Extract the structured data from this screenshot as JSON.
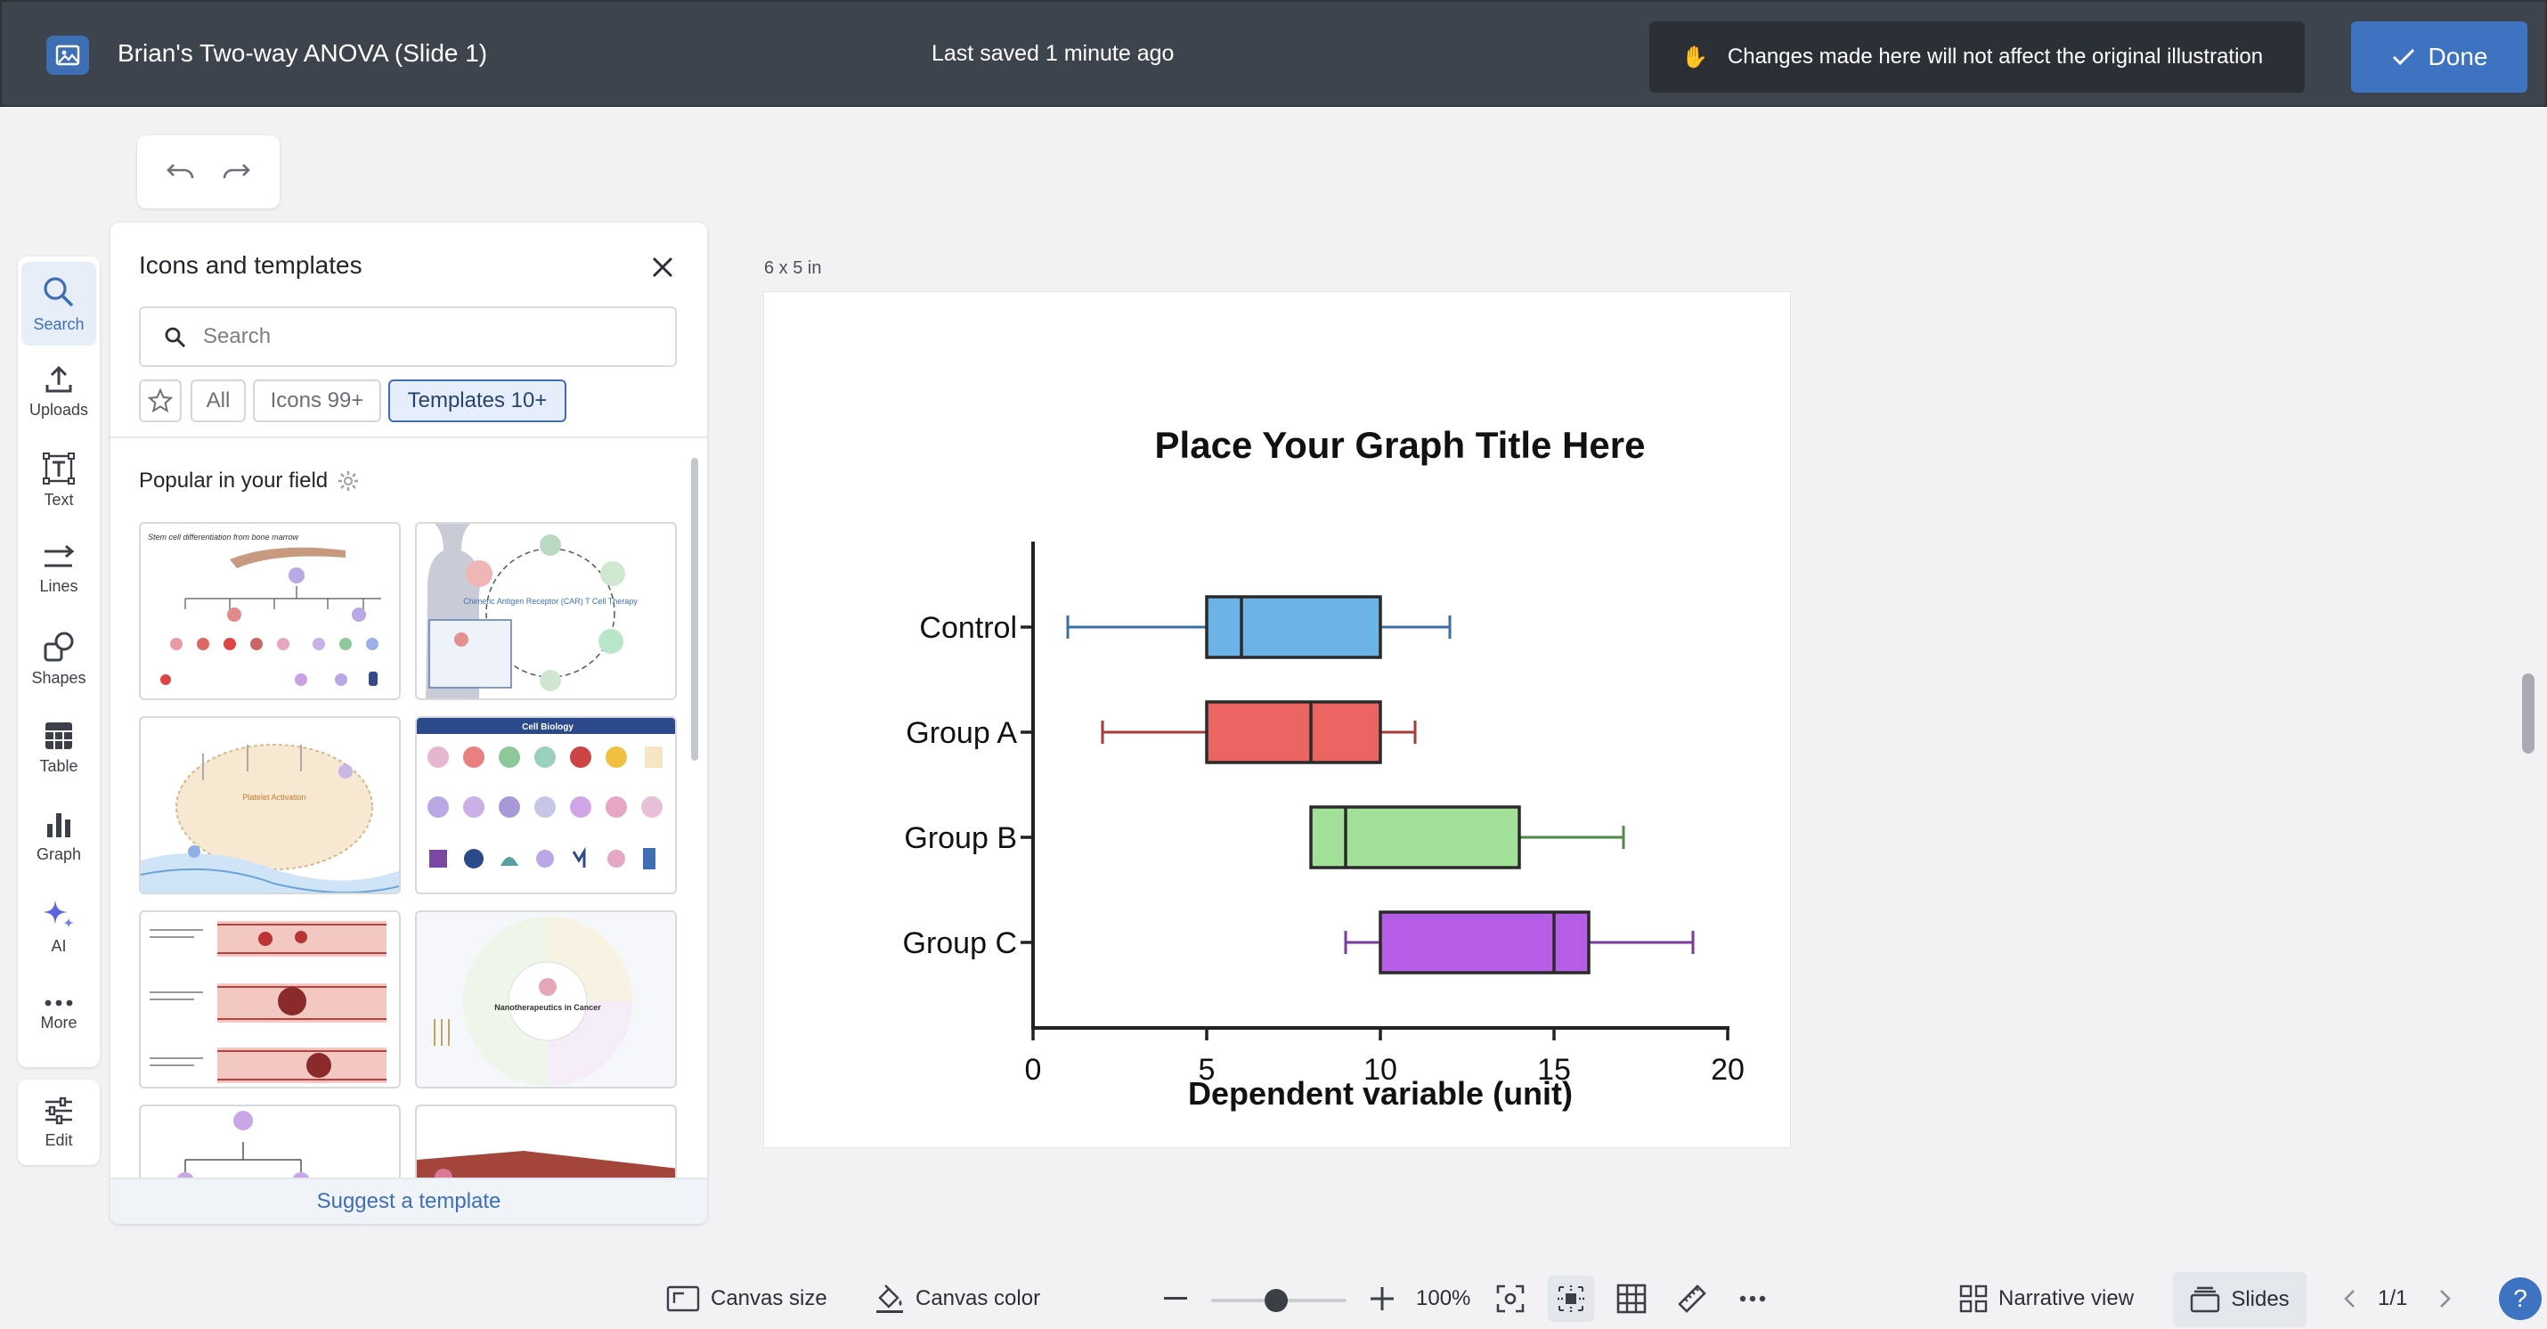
{
  "header": {
    "doc_title": "Brian's Two-way ANOVA (Slide 1)",
    "saved_status": "Last saved 1 minute ago",
    "notice_text": "Changes made here will not affect the original illustration",
    "done_label": "Done"
  },
  "rail": {
    "items": [
      {
        "label": "Search",
        "icon": "search-icon"
      },
      {
        "label": "Uploads",
        "icon": "upload-icon"
      },
      {
        "label": "Text",
        "icon": "text-icon"
      },
      {
        "label": "Lines",
        "icon": "lines-icon"
      },
      {
        "label": "Shapes",
        "icon": "shapes-icon"
      },
      {
        "label": "Table",
        "icon": "table-icon"
      },
      {
        "label": "Graph",
        "icon": "graph-icon"
      },
      {
        "label": "AI",
        "icon": "sparkle-icon"
      },
      {
        "label": "More",
        "icon": "more-icon"
      }
    ],
    "edit_label": "Edit"
  },
  "panel": {
    "title": "Icons and templates",
    "search_placeholder": "Search",
    "filters": {
      "all": "All",
      "icons": "Icons 99+",
      "templates": "Templates 10+"
    },
    "popular_label": "Popular in your field",
    "thumb_texts": {
      "t1": "Stem cell differentiation from bone marrow",
      "t2": "Chimeric Antigen Receptor (CAR) T Cell Therapy",
      "t3": "Platelet Activation",
      "t4": "Cell Biology",
      "t6": "Nanotherapeutics in Cancer"
    },
    "suggest_label": "Suggest a template"
  },
  "canvas": {
    "size_label": "6 x 5 in"
  },
  "bottom": {
    "canvas_size": "Canvas size",
    "canvas_color": "Canvas color",
    "zoom": "100%",
    "narrative": "Narrative view",
    "slides": "Slides",
    "page": "1/1",
    "help": "?"
  },
  "colors": {
    "accent": "#3e73c1",
    "topbar": "#3e444d"
  },
  "chart_data": {
    "type": "box",
    "orientation": "horizontal",
    "title": "Place Your Graph Title Here",
    "xlabel": "Dependent variable (unit)",
    "ylabel": "",
    "xlim": [
      0,
      20
    ],
    "xticks": [
      0,
      5,
      10,
      15,
      20
    ],
    "categories": [
      "Control",
      "Group A",
      "Group B",
      "Group C"
    ],
    "series": [
      {
        "category": "Control",
        "min": 1,
        "q1": 5,
        "median": 6,
        "q3": 10,
        "max": 12,
        "fill": "#6cb4e8",
        "stroke": "#3a6fa0"
      },
      {
        "category": "Group A",
        "min": 2,
        "q1": 5,
        "median": 8,
        "q3": 10,
        "max": 11,
        "fill": "#ea6562",
        "stroke": "#a83a3a"
      },
      {
        "category": "Group B",
        "min": 8,
        "q1": 8,
        "median": 9,
        "q3": 14,
        "max": 17,
        "fill": "#a3e09a",
        "stroke": "#4f8a4a"
      },
      {
        "category": "Group C",
        "min": 9,
        "q1": 10,
        "median": 15,
        "q3": 16,
        "max": 19,
        "fill": "#b65de8",
        "stroke": "#7a3aa0"
      }
    ]
  }
}
